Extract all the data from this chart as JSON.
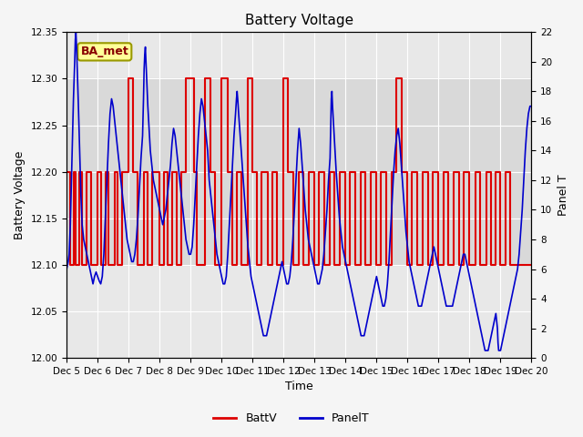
{
  "title": "Battery Voltage",
  "xlabel": "Time",
  "ylabel_left": "Battery Voltage",
  "ylabel_right": "Panel T",
  "xlim": [
    0,
    15
  ],
  "ylim_left": [
    12.0,
    12.35
  ],
  "ylim_right": [
    0,
    22
  ],
  "xtick_labels": [
    "Dec 5",
    "Dec 6",
    "Dec 7",
    "Dec 8",
    "Dec 9",
    "Dec 10",
    "Dec 11",
    "Dec 12",
    "Dec 13",
    "Dec 14",
    "Dec 15",
    "Dec 16",
    "Dec 17",
    "Dec 18",
    "Dec 19",
    "Dec 20"
  ],
  "xtick_positions": [
    0,
    1,
    2,
    3,
    4,
    5,
    6,
    7,
    8,
    9,
    10,
    11,
    12,
    13,
    14,
    15
  ],
  "yticks_left": [
    12.0,
    12.05,
    12.1,
    12.15,
    12.2,
    12.25,
    12.3,
    12.35
  ],
  "yticks_right": [
    0,
    2,
    4,
    6,
    8,
    10,
    12,
    14,
    16,
    18,
    20,
    22
  ],
  "plot_bg_color": "#e8e8e8",
  "outer_bg_color": "#f5f5f5",
  "battv_color": "#dd0000",
  "panelt_color": "#0000cc",
  "legend_box_facecolor": "#ffff99",
  "legend_box_edgecolor": "#999900",
  "annotation_text": "BA_met",
  "shade_band_ymin": 12.1,
  "shade_band_ymax": 12.3,
  "shade_color": "#d0d0d0",
  "battv_data": [
    [
      0.0,
      12.2
    ],
    [
      0.1,
      12.2
    ],
    [
      0.1,
      12.1
    ],
    [
      0.22,
      12.1
    ],
    [
      0.22,
      12.2
    ],
    [
      0.3,
      12.2
    ],
    [
      0.3,
      12.1
    ],
    [
      0.4,
      12.1
    ],
    [
      0.4,
      12.2
    ],
    [
      0.5,
      12.2
    ],
    [
      0.5,
      12.1
    ],
    [
      0.65,
      12.1
    ],
    [
      0.65,
      12.2
    ],
    [
      0.8,
      12.2
    ],
    [
      0.8,
      12.1
    ],
    [
      1.0,
      12.1
    ],
    [
      1.0,
      12.2
    ],
    [
      1.1,
      12.2
    ],
    [
      1.1,
      12.1
    ],
    [
      1.25,
      12.1
    ],
    [
      1.25,
      12.2
    ],
    [
      1.35,
      12.2
    ],
    [
      1.35,
      12.1
    ],
    [
      1.55,
      12.1
    ],
    [
      1.55,
      12.2
    ],
    [
      1.65,
      12.2
    ],
    [
      1.65,
      12.1
    ],
    [
      1.8,
      12.1
    ],
    [
      1.8,
      12.2
    ],
    [
      2.0,
      12.2
    ],
    [
      2.0,
      12.3
    ],
    [
      2.15,
      12.3
    ],
    [
      2.15,
      12.2
    ],
    [
      2.3,
      12.2
    ],
    [
      2.3,
      12.1
    ],
    [
      2.5,
      12.1
    ],
    [
      2.5,
      12.2
    ],
    [
      2.6,
      12.2
    ],
    [
      2.6,
      12.1
    ],
    [
      2.75,
      12.1
    ],
    [
      2.75,
      12.2
    ],
    [
      3.0,
      12.2
    ],
    [
      3.0,
      12.1
    ],
    [
      3.15,
      12.1
    ],
    [
      3.15,
      12.2
    ],
    [
      3.25,
      12.2
    ],
    [
      3.25,
      12.1
    ],
    [
      3.4,
      12.1
    ],
    [
      3.4,
      12.2
    ],
    [
      3.55,
      12.2
    ],
    [
      3.55,
      12.1
    ],
    [
      3.7,
      12.1
    ],
    [
      3.7,
      12.2
    ],
    [
      3.85,
      12.2
    ],
    [
      3.85,
      12.3
    ],
    [
      4.1,
      12.3
    ],
    [
      4.1,
      12.2
    ],
    [
      4.2,
      12.2
    ],
    [
      4.2,
      12.1
    ],
    [
      4.45,
      12.1
    ],
    [
      4.45,
      12.3
    ],
    [
      4.65,
      12.3
    ],
    [
      4.65,
      12.2
    ],
    [
      4.8,
      12.2
    ],
    [
      4.8,
      12.1
    ],
    [
      5.0,
      12.1
    ],
    [
      5.0,
      12.3
    ],
    [
      5.2,
      12.3
    ],
    [
      5.2,
      12.2
    ],
    [
      5.35,
      12.2
    ],
    [
      5.35,
      12.1
    ],
    [
      5.5,
      12.1
    ],
    [
      5.5,
      12.2
    ],
    [
      5.65,
      12.2
    ],
    [
      5.65,
      12.1
    ],
    [
      5.85,
      12.1
    ],
    [
      5.85,
      12.3
    ],
    [
      6.0,
      12.3
    ],
    [
      6.0,
      12.2
    ],
    [
      6.15,
      12.2
    ],
    [
      6.15,
      12.1
    ],
    [
      6.3,
      12.1
    ],
    [
      6.3,
      12.2
    ],
    [
      6.5,
      12.2
    ],
    [
      6.5,
      12.1
    ],
    [
      6.65,
      12.1
    ],
    [
      6.65,
      12.2
    ],
    [
      6.8,
      12.2
    ],
    [
      6.8,
      12.1
    ],
    [
      7.0,
      12.1
    ],
    [
      7.0,
      12.3
    ],
    [
      7.15,
      12.3
    ],
    [
      7.15,
      12.2
    ],
    [
      7.3,
      12.2
    ],
    [
      7.3,
      12.1
    ],
    [
      7.5,
      12.1
    ],
    [
      7.5,
      12.2
    ],
    [
      7.65,
      12.2
    ],
    [
      7.65,
      12.1
    ],
    [
      7.8,
      12.1
    ],
    [
      7.8,
      12.2
    ],
    [
      8.0,
      12.2
    ],
    [
      8.0,
      12.1
    ],
    [
      8.15,
      12.1
    ],
    [
      8.15,
      12.2
    ],
    [
      8.3,
      12.2
    ],
    [
      8.3,
      12.1
    ],
    [
      8.5,
      12.1
    ],
    [
      8.5,
      12.2
    ],
    [
      8.65,
      12.2
    ],
    [
      8.65,
      12.1
    ],
    [
      8.8,
      12.1
    ],
    [
      8.8,
      12.2
    ],
    [
      9.0,
      12.2
    ],
    [
      9.0,
      12.1
    ],
    [
      9.15,
      12.1
    ],
    [
      9.15,
      12.2
    ],
    [
      9.3,
      12.2
    ],
    [
      9.3,
      12.1
    ],
    [
      9.5,
      12.1
    ],
    [
      9.5,
      12.2
    ],
    [
      9.65,
      12.2
    ],
    [
      9.65,
      12.1
    ],
    [
      9.8,
      12.1
    ],
    [
      9.8,
      12.2
    ],
    [
      10.0,
      12.2
    ],
    [
      10.0,
      12.1
    ],
    [
      10.15,
      12.1
    ],
    [
      10.15,
      12.2
    ],
    [
      10.3,
      12.2
    ],
    [
      10.3,
      12.1
    ],
    [
      10.5,
      12.1
    ],
    [
      10.5,
      12.2
    ],
    [
      10.65,
      12.2
    ],
    [
      10.65,
      12.3
    ],
    [
      10.8,
      12.3
    ],
    [
      10.8,
      12.2
    ],
    [
      11.0,
      12.2
    ],
    [
      11.0,
      12.1
    ],
    [
      11.15,
      12.1
    ],
    [
      11.15,
      12.2
    ],
    [
      11.3,
      12.2
    ],
    [
      11.3,
      12.1
    ],
    [
      11.5,
      12.1
    ],
    [
      11.5,
      12.2
    ],
    [
      11.65,
      12.2
    ],
    [
      11.65,
      12.1
    ],
    [
      11.8,
      12.1
    ],
    [
      11.8,
      12.2
    ],
    [
      12.0,
      12.2
    ],
    [
      12.0,
      12.1
    ],
    [
      12.15,
      12.1
    ],
    [
      12.15,
      12.2
    ],
    [
      12.3,
      12.2
    ],
    [
      12.3,
      12.1
    ],
    [
      12.5,
      12.1
    ],
    [
      12.5,
      12.2
    ],
    [
      12.65,
      12.2
    ],
    [
      12.65,
      12.1
    ],
    [
      12.8,
      12.1
    ],
    [
      12.8,
      12.2
    ],
    [
      13.0,
      12.2
    ],
    [
      13.0,
      12.1
    ],
    [
      13.2,
      12.1
    ],
    [
      13.2,
      12.2
    ],
    [
      13.35,
      12.2
    ],
    [
      13.35,
      12.1
    ],
    [
      13.55,
      12.1
    ],
    [
      13.55,
      12.2
    ],
    [
      13.7,
      12.2
    ],
    [
      13.7,
      12.1
    ],
    [
      13.85,
      12.1
    ],
    [
      13.85,
      12.2
    ],
    [
      14.0,
      12.2
    ],
    [
      14.0,
      12.1
    ],
    [
      14.15,
      12.1
    ],
    [
      14.15,
      12.2
    ],
    [
      14.3,
      12.2
    ],
    [
      14.3,
      12.1
    ],
    [
      15.0,
      12.1
    ]
  ],
  "panelt_data": [
    [
      0.0,
      6.0
    ],
    [
      0.05,
      6.5
    ],
    [
      0.08,
      7.0
    ],
    [
      0.12,
      9.0
    ],
    [
      0.18,
      14.0
    ],
    [
      0.22,
      17.5
    ],
    [
      0.26,
      20.0
    ],
    [
      0.28,
      21.5
    ],
    [
      0.3,
      22.0
    ],
    [
      0.32,
      21.0
    ],
    [
      0.35,
      19.0
    ],
    [
      0.38,
      17.0
    ],
    [
      0.42,
      14.0
    ],
    [
      0.46,
      11.0
    ],
    [
      0.5,
      9.0
    ],
    [
      0.55,
      8.0
    ],
    [
      0.6,
      7.5
    ],
    [
      0.65,
      7.0
    ],
    [
      0.7,
      6.5
    ],
    [
      0.75,
      6.0
    ],
    [
      0.8,
      5.5
    ],
    [
      0.85,
      5.0
    ],
    [
      0.9,
      5.5
    ],
    [
      0.95,
      5.8
    ],
    [
      1.0,
      5.5
    ],
    [
      1.05,
      5.2
    ],
    [
      1.1,
      5.0
    ],
    [
      1.15,
      5.5
    ],
    [
      1.2,
      7.0
    ],
    [
      1.25,
      9.5
    ],
    [
      1.3,
      12.0
    ],
    [
      1.35,
      14.5
    ],
    [
      1.4,
      16.5
    ],
    [
      1.45,
      17.5
    ],
    [
      1.5,
      17.0
    ],
    [
      1.55,
      16.0
    ],
    [
      1.6,
      15.0
    ],
    [
      1.65,
      14.0
    ],
    [
      1.7,
      13.0
    ],
    [
      1.75,
      12.0
    ],
    [
      1.8,
      11.0
    ],
    [
      1.85,
      10.0
    ],
    [
      1.9,
      9.0
    ],
    [
      1.95,
      8.0
    ],
    [
      2.0,
      7.5
    ],
    [
      2.05,
      7.0
    ],
    [
      2.1,
      6.5
    ],
    [
      2.15,
      6.5
    ],
    [
      2.2,
      7.0
    ],
    [
      2.25,
      8.0
    ],
    [
      2.3,
      9.5
    ],
    [
      2.35,
      11.5
    ],
    [
      2.4,
      13.5
    ],
    [
      2.45,
      15.0
    ],
    [
      2.48,
      17.5
    ],
    [
      2.5,
      19.5
    ],
    [
      2.52,
      20.5
    ],
    [
      2.54,
      21.0
    ],
    [
      2.56,
      20.0
    ],
    [
      2.58,
      19.0
    ],
    [
      2.62,
      17.0
    ],
    [
      2.66,
      15.5
    ],
    [
      2.7,
      14.0
    ],
    [
      2.75,
      13.0
    ],
    [
      2.8,
      12.0
    ],
    [
      2.85,
      11.5
    ],
    [
      2.9,
      11.0
    ],
    [
      2.95,
      10.5
    ],
    [
      3.0,
      10.0
    ],
    [
      3.05,
      9.5
    ],
    [
      3.1,
      9.0
    ],
    [
      3.15,
      9.5
    ],
    [
      3.2,
      10.0
    ],
    [
      3.25,
      11.0
    ],
    [
      3.3,
      12.0
    ],
    [
      3.35,
      13.0
    ],
    [
      3.4,
      14.5
    ],
    [
      3.45,
      15.5
    ],
    [
      3.5,
      15.0
    ],
    [
      3.55,
      14.0
    ],
    [
      3.6,
      13.0
    ],
    [
      3.65,
      12.0
    ],
    [
      3.7,
      11.0
    ],
    [
      3.75,
      10.0
    ],
    [
      3.8,
      9.0
    ],
    [
      3.85,
      8.0
    ],
    [
      3.9,
      7.5
    ],
    [
      3.95,
      7.0
    ],
    [
      4.0,
      7.0
    ],
    [
      4.05,
      7.5
    ],
    [
      4.1,
      9.0
    ],
    [
      4.15,
      11.0
    ],
    [
      4.2,
      13.0
    ],
    [
      4.25,
      15.0
    ],
    [
      4.3,
      16.5
    ],
    [
      4.35,
      17.5
    ],
    [
      4.4,
      17.0
    ],
    [
      4.45,
      16.0
    ],
    [
      4.5,
      15.0
    ],
    [
      4.55,
      14.0
    ],
    [
      4.6,
      12.0
    ],
    [
      4.65,
      11.0
    ],
    [
      4.7,
      10.0
    ],
    [
      4.75,
      9.0
    ],
    [
      4.8,
      8.0
    ],
    [
      4.85,
      7.0
    ],
    [
      4.9,
      6.5
    ],
    [
      4.95,
      6.0
    ],
    [
      5.0,
      5.5
    ],
    [
      5.05,
      5.0
    ],
    [
      5.1,
      5.0
    ],
    [
      5.15,
      5.5
    ],
    [
      5.2,
      7.0
    ],
    [
      5.25,
      9.0
    ],
    [
      5.3,
      11.0
    ],
    [
      5.35,
      13.0
    ],
    [
      5.4,
      15.0
    ],
    [
      5.45,
      16.5
    ],
    [
      5.48,
      17.5
    ],
    [
      5.5,
      18.0
    ],
    [
      5.52,
      17.5
    ],
    [
      5.55,
      16.5
    ],
    [
      5.6,
      15.0
    ],
    [
      5.65,
      13.5
    ],
    [
      5.7,
      12.0
    ],
    [
      5.75,
      10.5
    ],
    [
      5.8,
      9.0
    ],
    [
      5.85,
      7.5
    ],
    [
      5.9,
      6.5
    ],
    [
      5.95,
      5.5
    ],
    [
      6.0,
      5.0
    ],
    [
      6.05,
      4.5
    ],
    [
      6.1,
      4.0
    ],
    [
      6.15,
      3.5
    ],
    [
      6.2,
      3.0
    ],
    [
      6.25,
      2.5
    ],
    [
      6.3,
      2.0
    ],
    [
      6.35,
      1.5
    ],
    [
      6.4,
      1.5
    ],
    [
      6.45,
      1.5
    ],
    [
      6.5,
      2.0
    ],
    [
      6.55,
      2.5
    ],
    [
      6.6,
      3.0
    ],
    [
      6.65,
      3.5
    ],
    [
      6.7,
      4.0
    ],
    [
      6.75,
      4.5
    ],
    [
      6.8,
      5.0
    ],
    [
      6.85,
      5.5
    ],
    [
      6.9,
      6.0
    ],
    [
      6.95,
      6.5
    ],
    [
      7.0,
      6.0
    ],
    [
      7.05,
      5.5
    ],
    [
      7.1,
      5.0
    ],
    [
      7.15,
      5.0
    ],
    [
      7.2,
      5.5
    ],
    [
      7.25,
      6.5
    ],
    [
      7.3,
      8.0
    ],
    [
      7.35,
      10.0
    ],
    [
      7.4,
      12.0
    ],
    [
      7.45,
      14.0
    ],
    [
      7.5,
      15.5
    ],
    [
      7.55,
      14.5
    ],
    [
      7.6,
      13.0
    ],
    [
      7.65,
      11.5
    ],
    [
      7.7,
      10.0
    ],
    [
      7.75,
      9.0
    ],
    [
      7.8,
      8.0
    ],
    [
      7.85,
      7.5
    ],
    [
      7.9,
      7.0
    ],
    [
      7.95,
      6.5
    ],
    [
      8.0,
      6.0
    ],
    [
      8.05,
      5.5
    ],
    [
      8.1,
      5.0
    ],
    [
      8.15,
      5.0
    ],
    [
      8.2,
      5.5
    ],
    [
      8.25,
      6.0
    ],
    [
      8.3,
      7.0
    ],
    [
      8.35,
      8.5
    ],
    [
      8.4,
      10.0
    ],
    [
      8.45,
      12.0
    ],
    [
      8.5,
      13.5
    ],
    [
      8.52,
      15.5
    ],
    [
      8.54,
      17.5
    ],
    [
      8.56,
      18.0
    ],
    [
      8.58,
      17.0
    ],
    [
      8.62,
      15.5
    ],
    [
      8.66,
      14.0
    ],
    [
      8.7,
      12.5
    ],
    [
      8.75,
      11.0
    ],
    [
      8.8,
      9.5
    ],
    [
      8.85,
      8.5
    ],
    [
      8.9,
      7.5
    ],
    [
      8.95,
      7.0
    ],
    [
      9.0,
      6.5
    ],
    [
      9.05,
      6.0
    ],
    [
      9.1,
      5.5
    ],
    [
      9.15,
      5.0
    ],
    [
      9.2,
      4.5
    ],
    [
      9.25,
      4.0
    ],
    [
      9.3,
      3.5
    ],
    [
      9.35,
      3.0
    ],
    [
      9.4,
      2.5
    ],
    [
      9.45,
      2.0
    ],
    [
      9.5,
      1.5
    ],
    [
      9.55,
      1.5
    ],
    [
      9.6,
      1.5
    ],
    [
      9.65,
      2.0
    ],
    [
      9.7,
      2.5
    ],
    [
      9.75,
      3.0
    ],
    [
      9.8,
      3.5
    ],
    [
      9.85,
      4.0
    ],
    [
      9.9,
      4.5
    ],
    [
      9.95,
      5.0
    ],
    [
      10.0,
      5.5
    ],
    [
      10.05,
      5.0
    ],
    [
      10.1,
      4.5
    ],
    [
      10.15,
      4.0
    ],
    [
      10.2,
      3.5
    ],
    [
      10.25,
      3.5
    ],
    [
      10.3,
      4.0
    ],
    [
      10.35,
      5.0
    ],
    [
      10.4,
      6.5
    ],
    [
      10.45,
      8.5
    ],
    [
      10.5,
      10.5
    ],
    [
      10.55,
      12.5
    ],
    [
      10.6,
      14.0
    ],
    [
      10.65,
      15.0
    ],
    [
      10.7,
      15.5
    ],
    [
      10.75,
      14.5
    ],
    [
      10.8,
      13.0
    ],
    [
      10.85,
      11.5
    ],
    [
      10.9,
      10.0
    ],
    [
      10.95,
      8.5
    ],
    [
      11.0,
      7.5
    ],
    [
      11.05,
      6.5
    ],
    [
      11.1,
      6.0
    ],
    [
      11.15,
      5.5
    ],
    [
      11.2,
      5.0
    ],
    [
      11.25,
      4.5
    ],
    [
      11.3,
      4.0
    ],
    [
      11.35,
      3.5
    ],
    [
      11.4,
      3.5
    ],
    [
      11.45,
      3.5
    ],
    [
      11.5,
      4.0
    ],
    [
      11.55,
      4.5
    ],
    [
      11.6,
      5.0
    ],
    [
      11.65,
      5.5
    ],
    [
      11.7,
      6.0
    ],
    [
      11.75,
      6.5
    ],
    [
      11.8,
      7.0
    ],
    [
      11.85,
      7.5
    ],
    [
      11.9,
      7.0
    ],
    [
      11.95,
      6.5
    ],
    [
      12.0,
      6.0
    ],
    [
      12.05,
      5.5
    ],
    [
      12.1,
      5.0
    ],
    [
      12.15,
      4.5
    ],
    [
      12.2,
      4.0
    ],
    [
      12.25,
      3.5
    ],
    [
      12.3,
      3.5
    ],
    [
      12.35,
      3.5
    ],
    [
      12.4,
      3.5
    ],
    [
      12.45,
      3.5
    ],
    [
      12.5,
      4.0
    ],
    [
      12.55,
      4.5
    ],
    [
      12.6,
      5.0
    ],
    [
      12.65,
      5.5
    ],
    [
      12.7,
      6.0
    ],
    [
      12.75,
      6.5
    ],
    [
      12.8,
      7.0
    ],
    [
      12.85,
      7.0
    ],
    [
      12.9,
      6.5
    ],
    [
      12.95,
      6.0
    ],
    [
      13.0,
      5.5
    ],
    [
      13.05,
      5.0
    ],
    [
      13.1,
      4.5
    ],
    [
      13.15,
      4.0
    ],
    [
      13.2,
      3.5
    ],
    [
      13.25,
      3.0
    ],
    [
      13.3,
      2.5
    ],
    [
      13.35,
      2.0
    ],
    [
      13.4,
      1.5
    ],
    [
      13.45,
      1.0
    ],
    [
      13.5,
      0.5
    ],
    [
      13.55,
      0.5
    ],
    [
      13.6,
      0.5
    ],
    [
      13.65,
      1.0
    ],
    [
      13.7,
      1.5
    ],
    [
      13.75,
      2.0
    ],
    [
      13.8,
      2.5
    ],
    [
      13.85,
      3.0
    ],
    [
      13.9,
      2.0
    ],
    [
      13.92,
      1.0
    ],
    [
      13.94,
      0.5
    ],
    [
      13.96,
      0.5
    ],
    [
      13.98,
      0.5
    ],
    [
      14.0,
      0.5
    ],
    [
      14.05,
      1.0
    ],
    [
      14.1,
      1.5
    ],
    [
      14.15,
      2.0
    ],
    [
      14.2,
      2.5
    ],
    [
      14.25,
      3.0
    ],
    [
      14.3,
      3.5
    ],
    [
      14.35,
      4.0
    ],
    [
      14.4,
      4.5
    ],
    [
      14.45,
      5.0
    ],
    [
      14.5,
      5.5
    ],
    [
      14.55,
      6.0
    ],
    [
      14.6,
      7.0
    ],
    [
      14.65,
      8.5
    ],
    [
      14.7,
      10.0
    ],
    [
      14.75,
      12.0
    ],
    [
      14.8,
      14.0
    ],
    [
      14.85,
      15.5
    ],
    [
      14.9,
      16.5
    ],
    [
      14.95,
      17.0
    ],
    [
      15.0,
      17.0
    ]
  ]
}
